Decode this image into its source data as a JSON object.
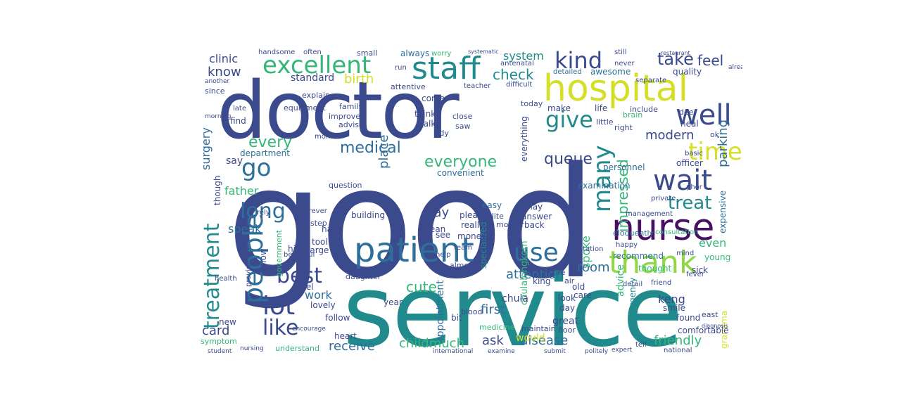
{
  "palette": {
    "navy": "#3b4a8c",
    "blue": "#2e6e9a",
    "teal": "#218a8d",
    "green": "#35b779",
    "lime": "#8fd744",
    "yellow": "#d5df27",
    "purple": "#471063",
    "darkteal": "#2a7b8e"
  },
  "words": {
    "good": "good",
    "service": "service",
    "doctor": "doctor",
    "hospital": "hospital",
    "nurse": "nurse",
    "patient": "patient",
    "staff": "staff",
    "excellent": "excellent",
    "people": "people",
    "treatment": "treatment",
    "thank": "thank",
    "well": "well",
    "wait": "wait",
    "kind": "kind",
    "time": "time",
    "give": "give",
    "use": "use",
    "treat": "treat",
    "many": "many",
    "long": "long",
    "lot": "lot",
    "best": "best",
    "like": "like",
    "go": "go",
    "take": "take",
    "feel": "feel",
    "check": "check",
    "clinic": "clinic",
    "know": "know",
    "medical": "medical",
    "everyone": "everyone",
    "queue": "queue",
    "every": "every",
    "modern": "modern",
    "parking": "parking",
    "impressed": "impressed",
    "attention": "attention",
    "room": "room",
    "card": "card",
    "childmuch": "childmuch",
    "receive": "receive",
    "ask": "ask",
    "disease": "disease",
    "friendly": "friendly",
    "cute": "cute",
    "first": "first",
    "advice": "advice",
    "keng": "keng",
    "speak": "speak",
    "father": "father",
    "surgery": "surgery",
    "work": "work",
    "pay": "pay",
    "birth": "birth",
    "system": "system",
    "standard": "standard",
    "spoke": "spoke",
    "even": "even",
    "quality": "quality",
    "chula": "chula",
    "chulalongkorn": "chulalongkorn",
    "appointment": "appointment",
    "would": "would",
    "lovely": "lovely",
    "understand": "understand",
    "handsome": "handsome",
    "always": "always",
    "place": "place",
    "say": "say",
    "department": "department",
    "level": "level",
    "officer": "officer",
    "easy": "easy",
    "please": "please",
    "really": "really",
    "clean": "clean",
    "convenient": "convenient",
    "personnel": "personnel",
    "make": "make",
    "life": "life",
    "detailed": "detailed",
    "awesome": "awesome",
    "still": "still",
    "never": "never",
    "heal": "heal",
    "sick": "sick",
    "young": "young",
    "smile": "smile",
    "found": "found",
    "tell": "tell",
    "national": "national",
    "examination": "examination",
    "station": "station",
    "money": "money",
    "answer": "answer",
    "back": "back",
    "may": "may",
    "old": "old",
    "care": "care",
    "look": "look",
    "day": "day",
    "great": "great",
    "king": "king",
    "recommend": "recommend",
    "thought": "thought",
    "happy": "happy",
    "mind": "mind",
    "comfortable": "comfortable",
    "detail": "detail",
    "friend": "friend",
    "emergency": "emergency",
    "building": "building",
    "heart": "heart",
    "half": "half",
    "tool": "tool",
    "large": "large",
    "high": "high",
    "new": "new",
    "symptom": "symptom",
    "daughter": "daughter",
    "year": "year",
    "see": "see",
    "follow": "follow",
    "bit": "bit",
    "medicine": "medicine",
    "maintain": "maintain",
    "floor": "floor",
    "almost": "almost",
    "blood": "blood",
    "polite": "polite",
    "mother": "mother",
    "specialized": "specialized",
    "everything": "everything",
    "think": "think",
    "talk": "talk",
    "come": "come",
    "family": "family",
    "improve": "improve",
    "advise": "advise",
    "month": "month",
    "find": "find",
    "late": "late",
    "explain": "explain",
    "equipment": "equipment",
    "since": "since",
    "worry": "worry",
    "attentive": "attentive",
    "run": "run",
    "teacher": "teacher",
    "difficult": "difficult",
    "antenatal": "antenatal",
    "today": "today",
    "include": "include",
    "little": "little",
    "brain": "brain",
    "basic": "basic",
    "ok": "ok",
    "right": "right",
    "dee": "dee",
    "phor": "phor",
    "expensive": "expensive",
    "eloquently": "eloquently",
    "consultation": "consultation",
    "management": "management",
    "tidy": "tidy",
    "close": "close",
    "saw": "saw",
    "small": "small",
    "often": "often",
    "question": "question",
    "need": "need",
    "step": "step",
    "provide": "provide",
    "slow": "slow",
    "tire": "tire",
    "air": "air",
    "fever": "fever",
    "east": "east",
    "grandma": "grandma",
    "private": "private",
    "health": "health",
    "forever": "forever",
    "rely": "rely",
    "beautiful": "beautiful",
    "help": "help",
    "team": "team",
    "government": "government",
    "already": "already",
    "restaurant": "restaurant",
    "morning": "morning",
    "another": "another",
    "systematic": "systematic",
    "separate": "separate",
    "encourage": "encourage",
    "nursing": "nursing",
    "student": "student",
    "international": "international",
    "examine": "examine",
    "submit": "submit",
    "politely": "politely",
    "expert": "expert",
    "diagnosis": "diagnosis",
    "though": "though"
  }
}
